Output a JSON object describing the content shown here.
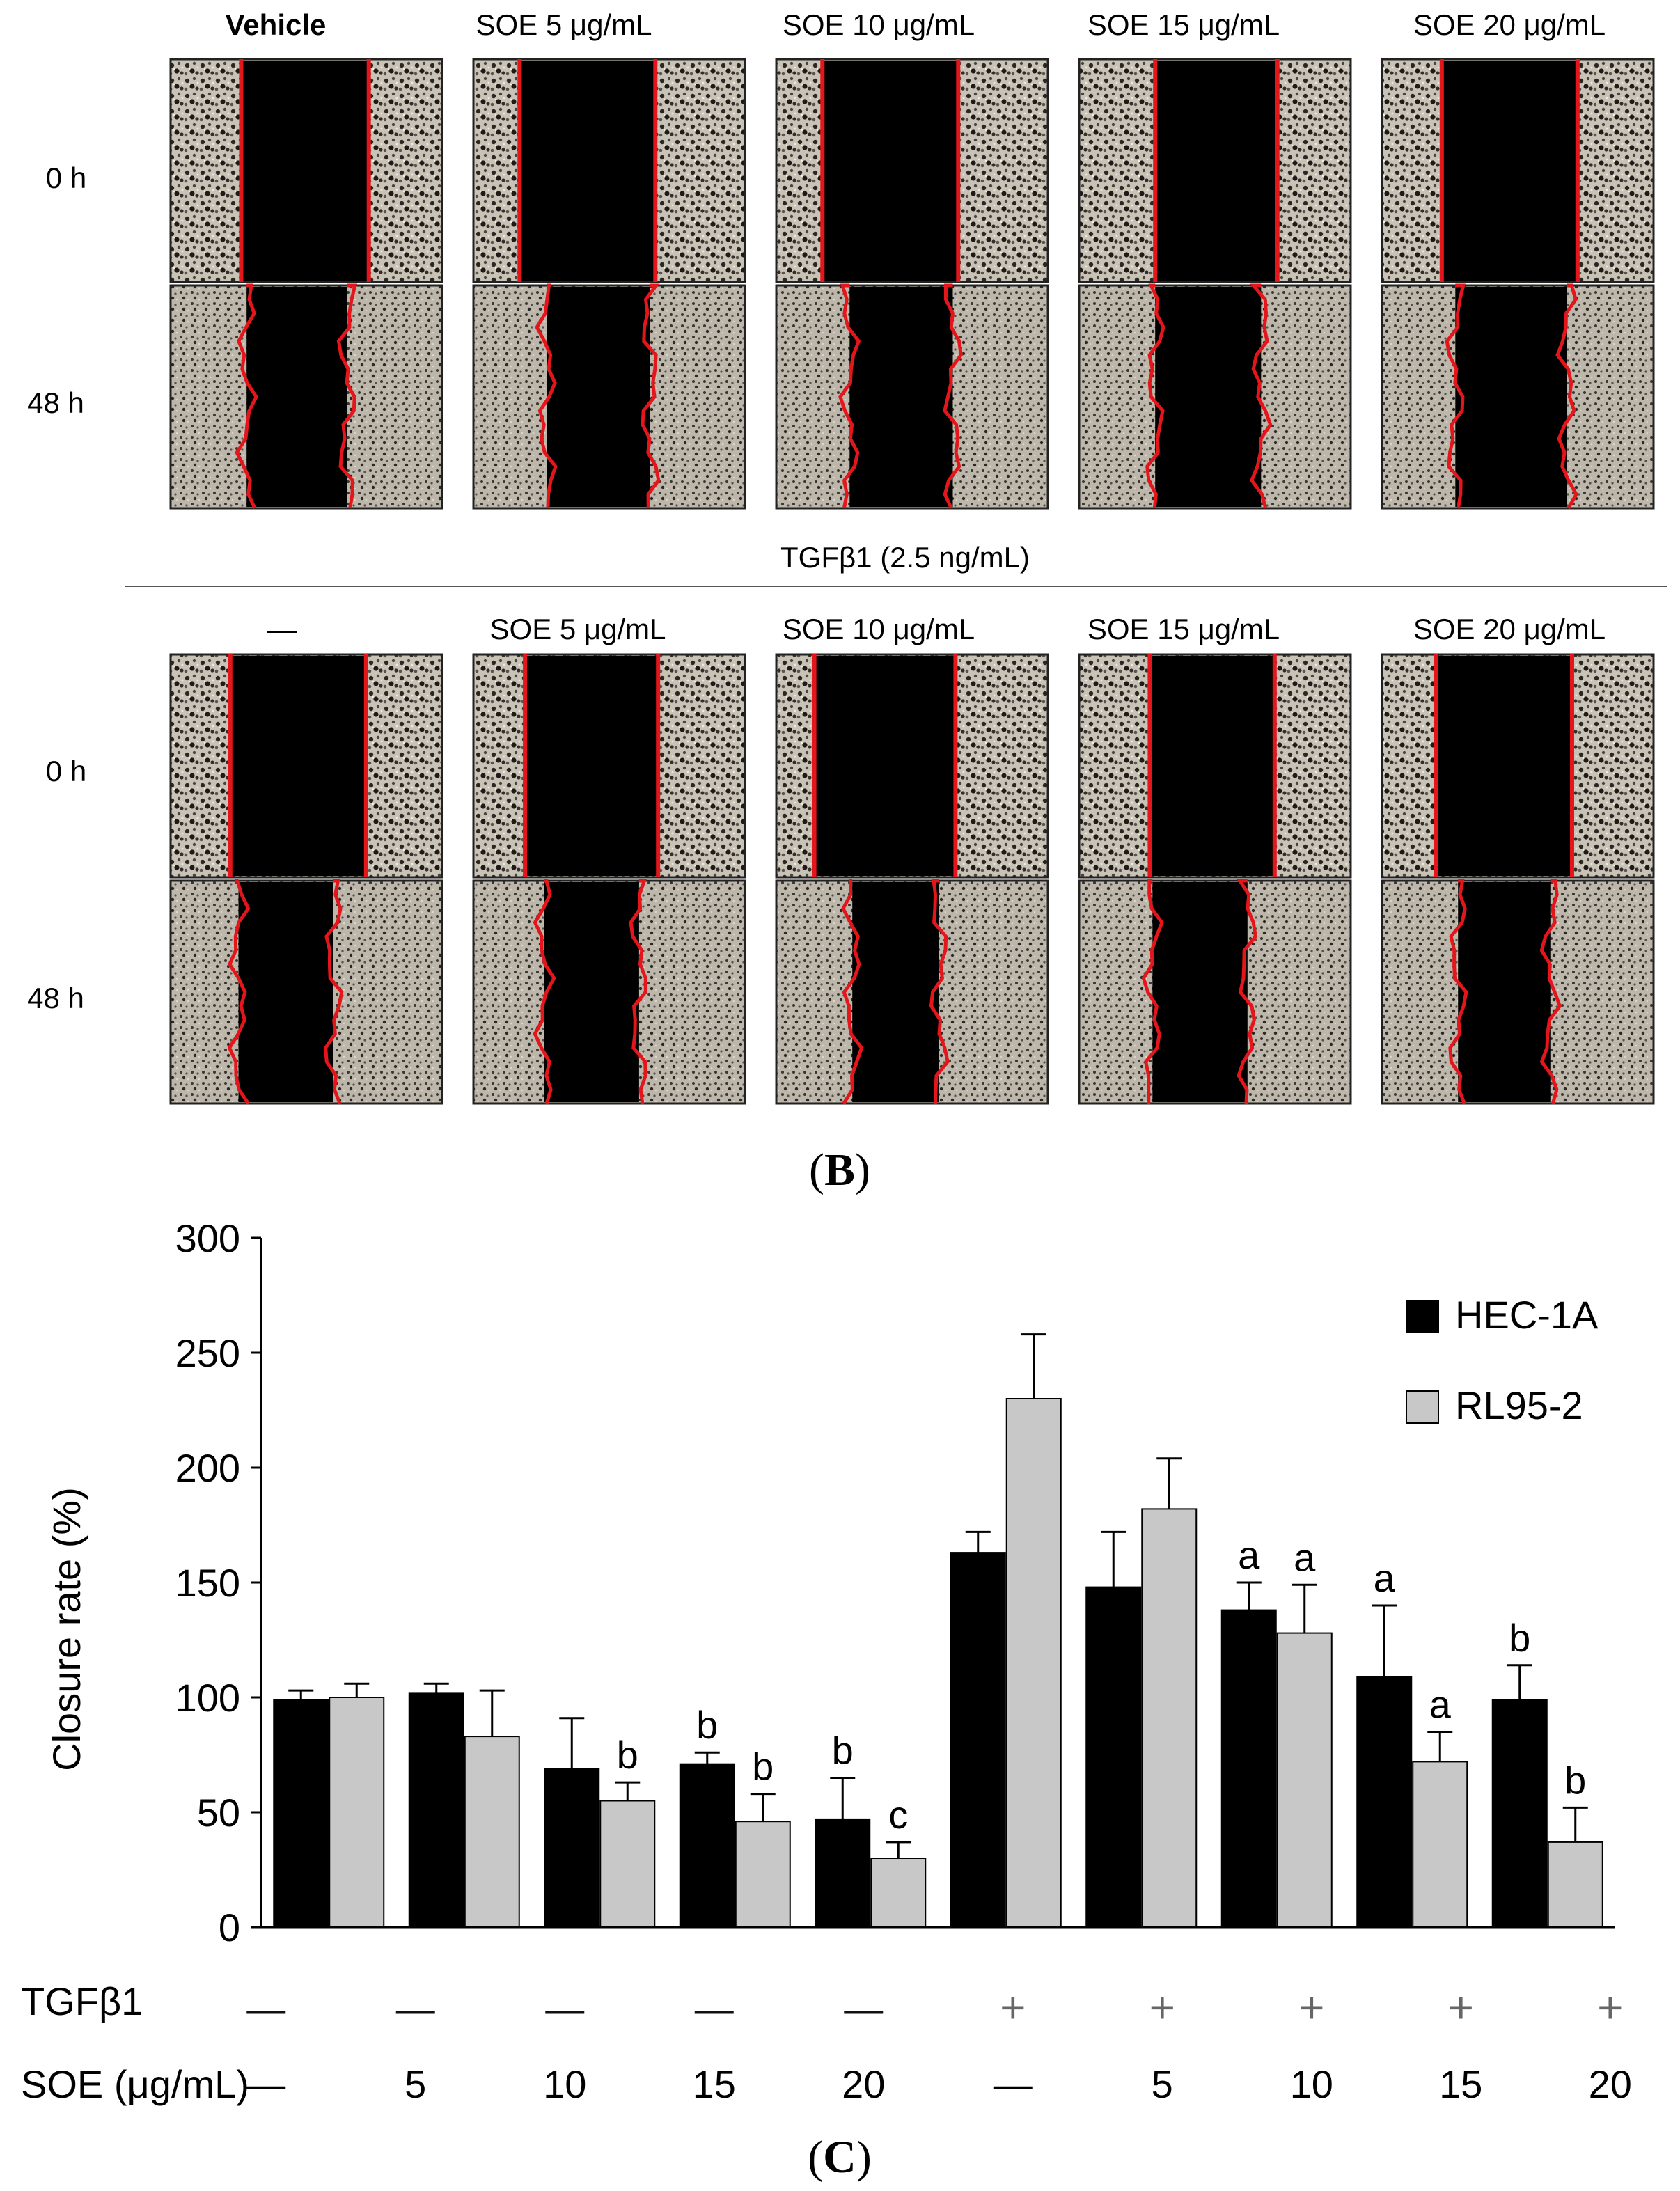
{
  "panel_b": {
    "top_row_labels": [
      "Vehicle",
      "SOE 5 μg/mL",
      "SOE 10 μg/mL",
      "SOE 15 μg/mL",
      "SOE 20 μg/mL"
    ],
    "bottom_row_labels": [
      "—",
      "SOE 5 μg/mL",
      "SOE 10 μg/mL",
      "SOE 15 μg/mL",
      "SOE 20 μg/mL"
    ],
    "time_labels": [
      "0 h",
      "48 h"
    ],
    "treatment_label": "TGFβ1 (2.5 ng/mL)",
    "caption_open": "(",
    "caption_letter": "B",
    "caption_close": ")",
    "colors": {
      "wound_edge": "#e4161b",
      "cell_field": "#c9c2b6",
      "gap": "#000000"
    }
  },
  "panel_c": {
    "caption_open": "(",
    "caption_letter": "C",
    "caption_close": ")",
    "row_labels": [
      "TGFβ1",
      "SOE (μg/mL)"
    ],
    "tgf_row": [
      "—",
      "—",
      "—",
      "—",
      "—",
      "+",
      "+",
      "+",
      "+",
      "+"
    ],
    "soe_row": [
      "—",
      "5",
      "10",
      "15",
      "20",
      "—",
      "5",
      "10",
      "15",
      "20"
    ]
  },
  "chart_data": {
    "type": "bar",
    "title": "",
    "xlabel": "",
    "ylabel": "Closure rate (%)",
    "ylim": [
      0,
      300
    ],
    "yticks": [
      0,
      50,
      100,
      150,
      200,
      250,
      300
    ],
    "legend_position": "top-right",
    "categories": [
      "− / −",
      "− / 5",
      "− / 10",
      "− / 15",
      "− / 20",
      "+ / −",
      "+ / 5",
      "+ / 10",
      "+ / 15",
      "+ / 20"
    ],
    "series": [
      {
        "name": "HEC-1A",
        "color": "#000000",
        "values": [
          99,
          102,
          69,
          71,
          47,
          163,
          148,
          138,
          109,
          99
        ],
        "errors": [
          4,
          4,
          22,
          5,
          18,
          9,
          24,
          12,
          31,
          15
        ],
        "annotations": [
          "",
          "",
          "",
          "b",
          "b",
          "",
          "",
          "a",
          "a",
          "b"
        ]
      },
      {
        "name": "RL95-2",
        "color": "#c8c8c8",
        "values": [
          100,
          83,
          55,
          46,
          30,
          230,
          182,
          128,
          72,
          37
        ],
        "errors": [
          6,
          20,
          8,
          12,
          7,
          28,
          22,
          21,
          13,
          15
        ],
        "annotations": [
          "",
          "",
          "b",
          "b",
          "c",
          "",
          "",
          "a",
          "a",
          "b"
        ]
      }
    ]
  }
}
